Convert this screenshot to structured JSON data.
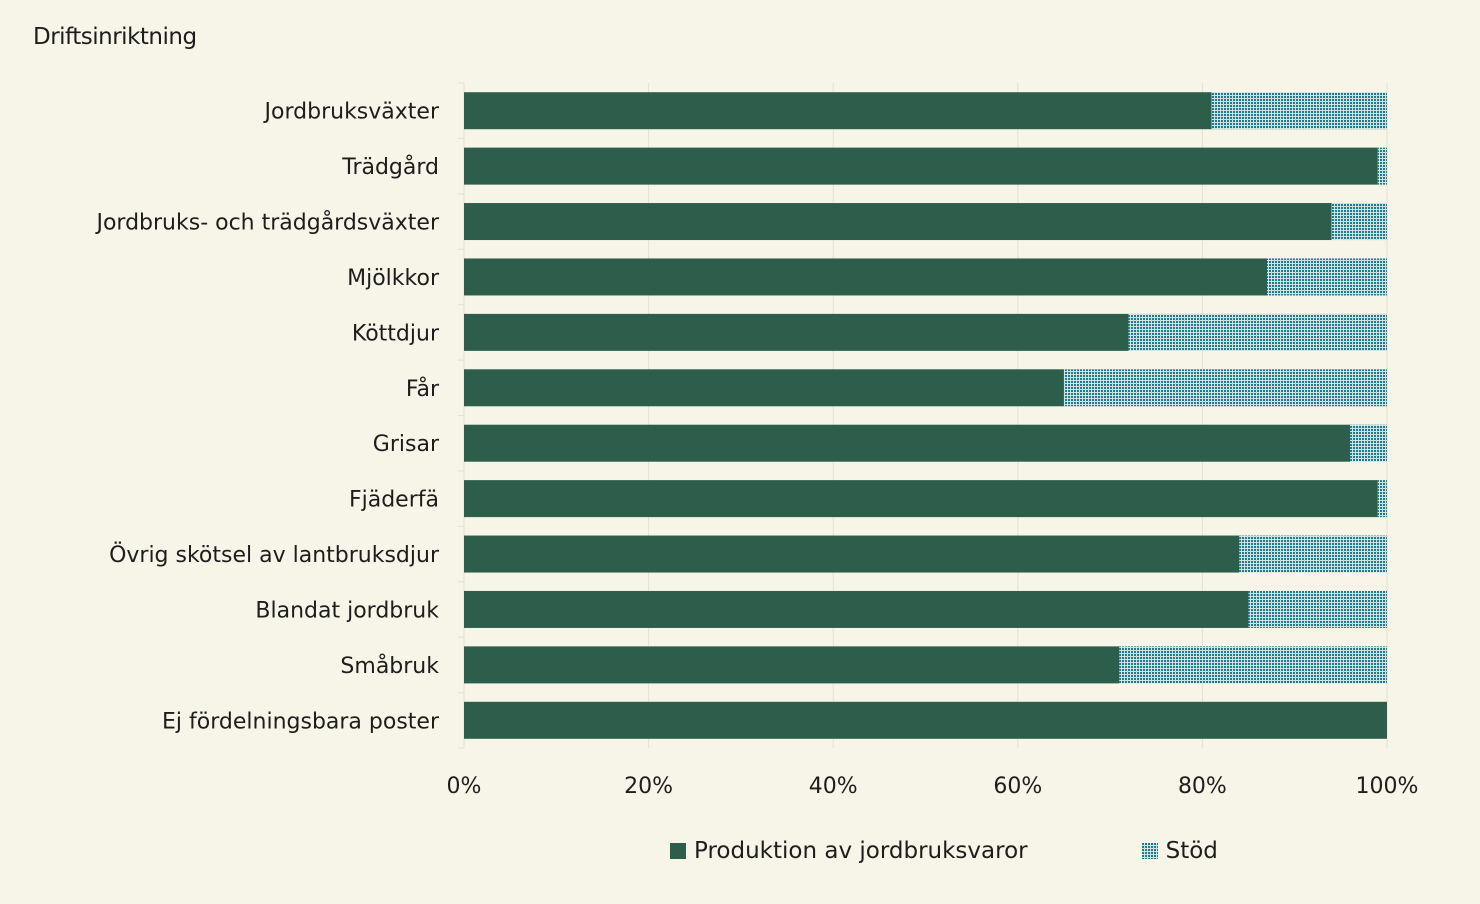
{
  "chart_data": {
    "type": "bar",
    "orientation": "horizontal",
    "stacked": true,
    "title": "Driftsinriktning",
    "categories": [
      "Jordbruksväxter",
      "Trädgård",
      "Jordbruks- och trädgårdsväxter",
      "Mjölkkor",
      "Köttdjur",
      "Får",
      "Grisar",
      "Fjäderfä",
      "Övrig skötsel av lantbruksdjur",
      "Blandat jordbruk",
      "Småbruk",
      "Ej fördelningsbara poster"
    ],
    "series": [
      {
        "name": "Produktion av jordbruksvaror",
        "color": "#2d5e4c",
        "values": [
          81,
          99,
          94,
          87,
          72,
          65,
          96,
          99,
          84,
          85,
          71,
          100
        ]
      },
      {
        "name": "Stöd",
        "color": "#1e7a8c",
        "values": [
          19,
          1,
          6,
          13,
          28,
          35,
          4,
          1,
          16,
          15,
          29,
          0
        ]
      }
    ],
    "xlim": [
      0,
      100
    ],
    "xticks": [
      "0%",
      "20%",
      "40%",
      "60%",
      "80%",
      "100%"
    ],
    "xtick_values": [
      0,
      20,
      40,
      60,
      80,
      100
    ],
    "grid": "vertical",
    "legend_position": "bottom"
  }
}
